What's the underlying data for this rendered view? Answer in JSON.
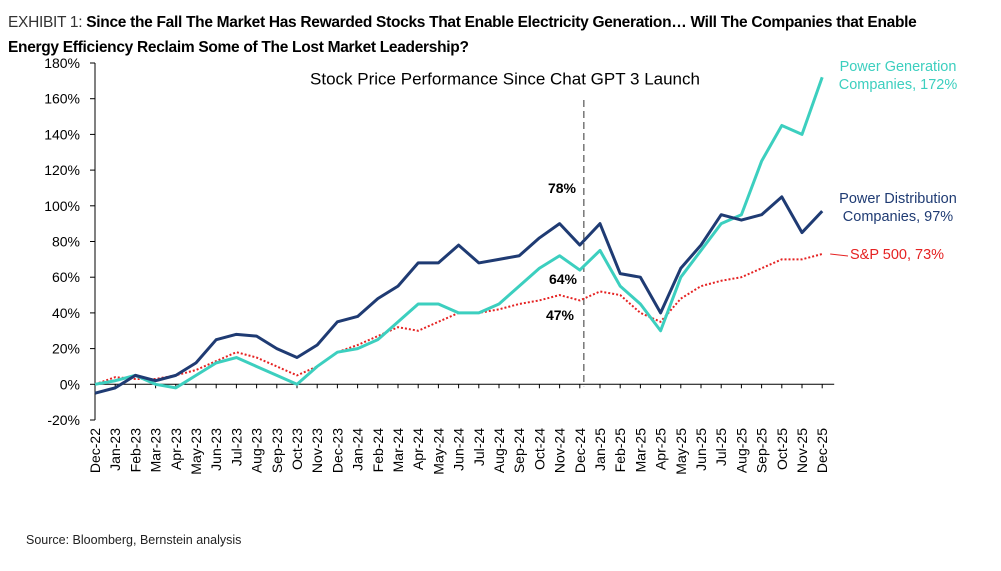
{
  "chart_data": {
    "type": "line",
    "exhibit": "EXHIBIT 1:",
    "title": "Since the Fall The Market Has Rewarded Stocks That Enable Electricity Generation… Will The Companies that Enable Energy Efficiency Reclaim Some of The Lost Market Leadership?",
    "subtitle": "Stock Price Performance Since Chat GPT 3 Launch",
    "source": "Source: Bloomberg, Bernstein analysis",
    "categories": [
      "Dec-22",
      "Jan-23",
      "Feb-23",
      "Mar-23",
      "Apr-23",
      "May-23",
      "Jun-23",
      "Jul-23",
      "Aug-23",
      "Sep-23",
      "Oct-23",
      "Nov-23",
      "Dec-23",
      "Jan-24",
      "Feb-24",
      "Mar-24",
      "Apr-24",
      "May-24",
      "Jun-24",
      "Jul-24",
      "Aug-24",
      "Sep-24",
      "Oct-24",
      "Nov-24",
      "Dec-24",
      "Jan-25",
      "Feb-25",
      "Mar-25",
      "Apr-25",
      "May-25",
      "Jun-25",
      "Jul-25",
      "Aug-25",
      "Sep-25",
      "Oct-25",
      "Nov-25",
      "Dec-25"
    ],
    "series": [
      {
        "name": "Power Generation Companies, 172%",
        "color": "#3ccfbf",
        "style": "solid",
        "values": [
          0,
          2,
          5,
          0,
          -2,
          5,
          12,
          15,
          10,
          5,
          0,
          10,
          18,
          20,
          25,
          35,
          45,
          45,
          40,
          40,
          45,
          55,
          65,
          72,
          64,
          75,
          55,
          45,
          30,
          60,
          75,
          90,
          95,
          125,
          145,
          140,
          172
        ]
      },
      {
        "name": "Power Distribution Companies, 97%",
        "color": "#1f3b73",
        "style": "solid",
        "values": [
          -5,
          -2,
          5,
          2,
          5,
          12,
          25,
          28,
          27,
          20,
          15,
          22,
          35,
          38,
          48,
          55,
          68,
          68,
          78,
          68,
          70,
          72,
          82,
          90,
          78,
          90,
          62,
          60,
          40,
          65,
          78,
          95,
          92,
          95,
          105,
          85,
          97
        ]
      },
      {
        "name": "S&P 500, 73%",
        "color": "#e52222",
        "style": "dotted",
        "values": [
          0,
          4,
          3,
          3,
          5,
          8,
          13,
          18,
          15,
          10,
          5,
          10,
          18,
          22,
          27,
          32,
          30,
          35,
          40,
          40,
          42,
          45,
          47,
          50,
          47,
          52,
          50,
          40,
          35,
          48,
          55,
          58,
          60,
          65,
          70,
          70,
          73
        ]
      }
    ],
    "annotations": [
      {
        "text": "78%",
        "color": "#1f3b73"
      },
      {
        "text": "64%",
        "color": "#3ccfbf"
      },
      {
        "text": "47%",
        "color": "#e52222"
      }
    ],
    "ylim": [
      -20,
      180
    ],
    "yticks": [
      {
        "value": -20,
        "label": "-20%"
      },
      {
        "value": 0,
        "label": "0%"
      },
      {
        "value": 20,
        "label": "20%"
      },
      {
        "value": 40,
        "label": "40%"
      },
      {
        "value": 60,
        "label": "60%"
      },
      {
        "value": 80,
        "label": "80%"
      },
      {
        "value": 100,
        "label": "100%"
      },
      {
        "value": 120,
        "label": "120%"
      },
      {
        "value": 140,
        "label": "140%"
      },
      {
        "value": 160,
        "label": "160%"
      },
      {
        "value": 180,
        "label": "180%"
      }
    ],
    "grid": false
  }
}
